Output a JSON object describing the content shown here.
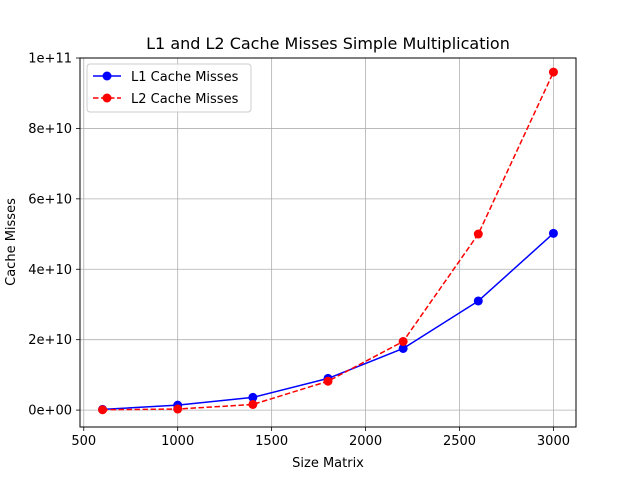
{
  "chart_data": {
    "type": "line",
    "title": "L1 and L2 Cache Misses Simple Multiplication",
    "xlabel": "Size Matrix",
    "ylabel": "Cache Misses",
    "x": [
      600,
      1000,
      1400,
      1800,
      2200,
      2600,
      3000
    ],
    "xlim": [
      480,
      3120
    ],
    "ylim": [
      -4800000000,
      100000000000
    ],
    "xticks": [
      500,
      1000,
      1500,
      2000,
      2500,
      3000
    ],
    "xtick_labels": [
      "500",
      "1000",
      "1500",
      "2000",
      "2500",
      "3000"
    ],
    "yticks": [
      0,
      20000000000,
      40000000000,
      60000000000,
      80000000000,
      100000000000
    ],
    "ytick_labels": [
      "0e+00",
      "2e+10",
      "4e+10",
      "6e+10",
      "8e+10",
      "1e+11"
    ],
    "grid": true,
    "legend_position": "top-left",
    "series": [
      {
        "name": "L1 Cache Misses",
        "color": "#0000ff",
        "linestyle": "solid",
        "marker": "circle",
        "values": [
          200000000,
          1400000000,
          3600000000,
          9000000000,
          17500000000,
          31000000000,
          50200000000
        ]
      },
      {
        "name": "L2 Cache Misses",
        "color": "#ff0000",
        "linestyle": "dashed",
        "marker": "circle",
        "values": [
          100000000,
          300000000,
          1600000000,
          8200000000,
          19500000000,
          50000000000,
          96000000000
        ]
      }
    ]
  }
}
